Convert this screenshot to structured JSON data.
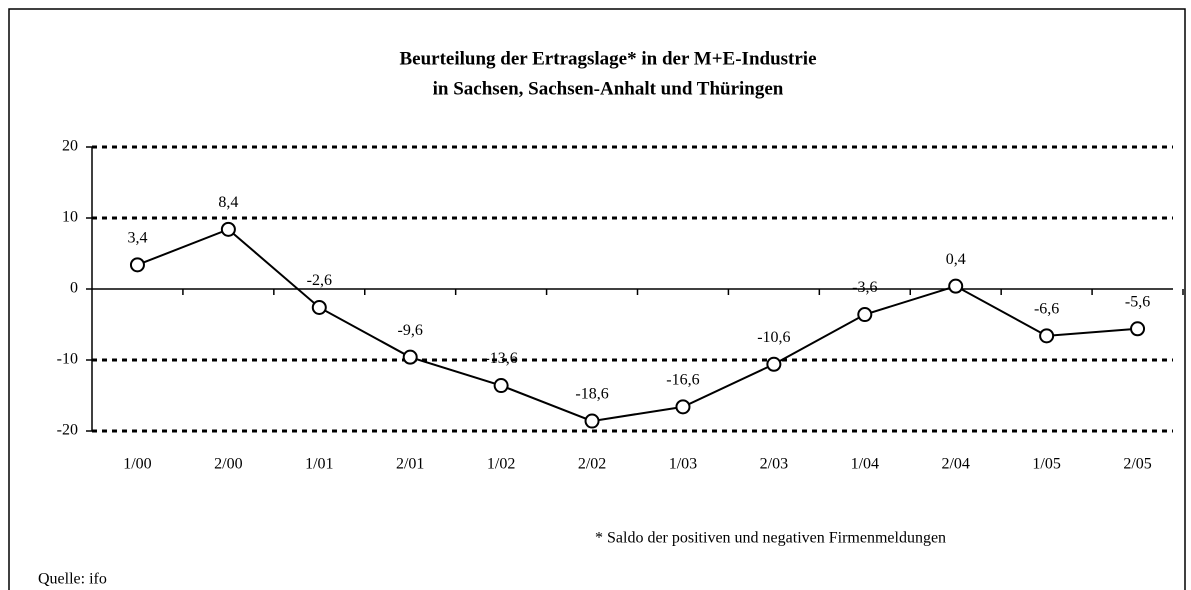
{
  "chart_data": {
    "type": "line",
    "title": "Beurteilung der Ertragslage* in der M+E-Industrie",
    "subtitle": "in Sachsen, Sachsen-Anhalt und Thüringen",
    "categories": [
      "1/00",
      "2/00",
      "1/01",
      "2/01",
      "1/02",
      "2/02",
      "1/03",
      "2/03",
      "1/04",
      "2/04",
      "1/05",
      "2/05"
    ],
    "series": [
      {
        "name": "Saldo",
        "color": "#000000",
        "values": [
          3.4,
          8.4,
          -2.6,
          -9.6,
          -13.6,
          -18.6,
          -16.6,
          -10.6,
          -3.6,
          0.4,
          -6.6,
          -5.6
        ],
        "value_labels": [
          "3,4",
          "8,4",
          "-2,6",
          "-9,6",
          "-13,6",
          "-18,6",
          "-16,6",
          "-10,6",
          "-3,6",
          "0,4",
          "-6,6",
          "-5,6"
        ]
      }
    ],
    "ylim": [
      -20,
      20
    ],
    "yticks": [
      -20,
      -10,
      0,
      10,
      20
    ],
    "grid": true,
    "note": "* Saldo der positiven und negativen Firmenmeldungen",
    "source": "Quelle: ifo"
  }
}
